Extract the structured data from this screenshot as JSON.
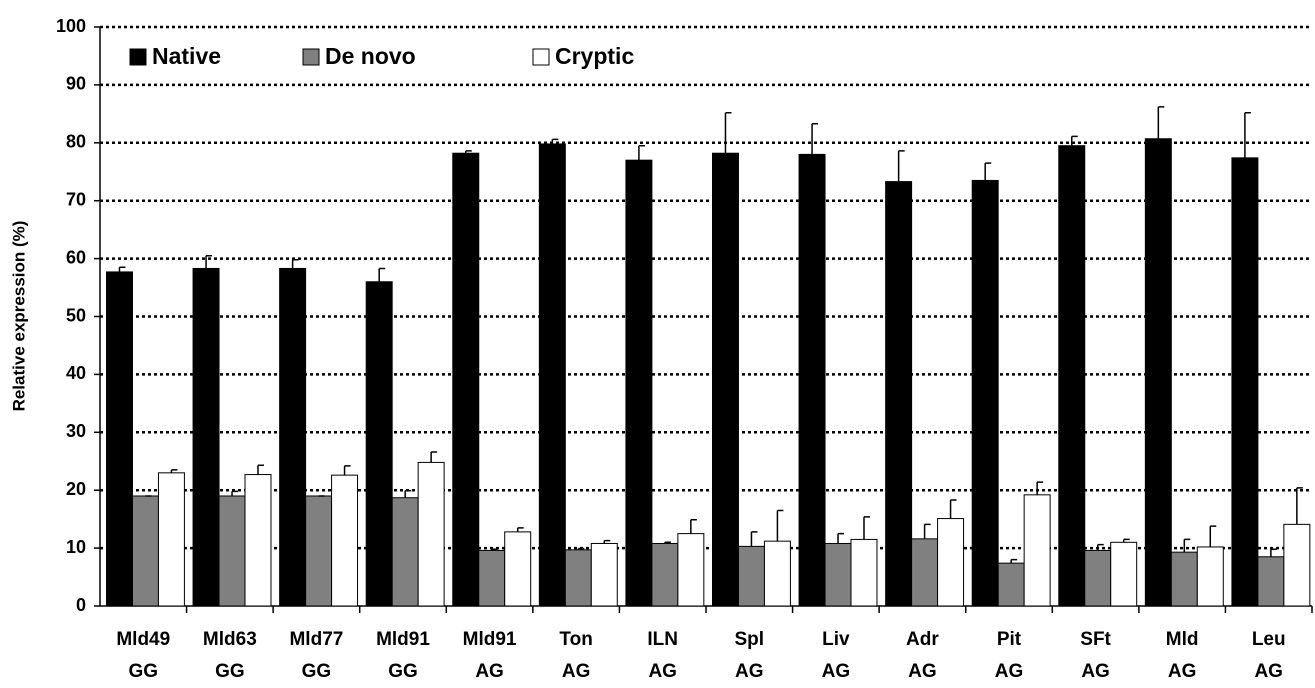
{
  "chart_data": {
    "type": "bar",
    "ylabel": "Relative expression (%)",
    "categories": [
      [
        "Mld49",
        "GG"
      ],
      [
        "Mld63",
        "GG"
      ],
      [
        "Mld77",
        "GG"
      ],
      [
        "Mld91",
        "GG"
      ],
      [
        "Mld91",
        "AG"
      ],
      [
        "Ton",
        "AG"
      ],
      [
        "ILN",
        "AG"
      ],
      [
        "Spl",
        "AG"
      ],
      [
        "Liv",
        "AG"
      ],
      [
        "Adr",
        "AG"
      ],
      [
        "Pit",
        "AG"
      ],
      [
        "SFt",
        "AG"
      ],
      [
        "Mld",
        "AG"
      ],
      [
        "Leu",
        "AG"
      ]
    ],
    "series": [
      {
        "name": "Native",
        "color": "#000000",
        "values": [
          57.7,
          58.3,
          58.3,
          56,
          78.2,
          79.8,
          77,
          78.2,
          78,
          73.3,
          73.5,
          79.5,
          80.7,
          77.4
        ],
        "errors": [
          0.8,
          2.2,
          1.5,
          2.3,
          0.4,
          0.8,
          2.5,
          7,
          5.3,
          5.3,
          3,
          1.6,
          5.5,
          7.8
        ]
      },
      {
        "name": "De novo",
        "color": "#808080",
        "values": [
          19,
          19,
          19,
          18.7,
          9.6,
          9.7,
          10.8,
          10.3,
          10.8,
          11.6,
          7.4,
          9.6,
          9.3,
          8.5
        ],
        "errors": [
          0,
          0.8,
          0,
          1.2,
          0.2,
          0.2,
          0.2,
          2.5,
          1.7,
          2.5,
          0.6,
          1,
          2.2,
          1.3
        ]
      },
      {
        "name": "Cryptic",
        "color": "#ffffff",
        "values": [
          23,
          22.7,
          22.6,
          24.8,
          12.8,
          10.8,
          12.5,
          11.2,
          11.5,
          15.1,
          19.2,
          11,
          10.2,
          14.1
        ],
        "errors": [
          0.5,
          1.6,
          1.6,
          1.8,
          0.7,
          0.5,
          2.4,
          5.3,
          3.9,
          3.2,
          2.2,
          0.5,
          3.6,
          6.3
        ]
      }
    ],
    "ylim": [
      0,
      100
    ],
    "yticks": [
      0,
      10,
      20,
      30,
      40,
      50,
      60,
      70,
      80,
      90,
      100
    ],
    "grid": true,
    "legend": "top-left"
  }
}
